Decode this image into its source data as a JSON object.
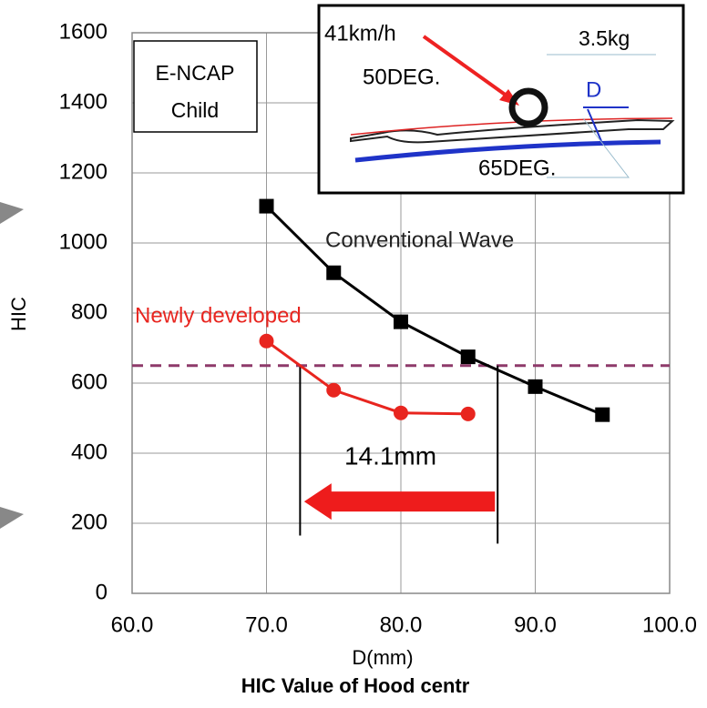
{
  "chart_data": {
    "type": "line",
    "title": "HIC Value of Hood centr",
    "xlabel": "D(mm)",
    "ylabel": "HIC",
    "xlim": [
      60,
      100
    ],
    "xticks": [
      {
        "value": 60,
        "label": "60.0"
      },
      {
        "value": 70,
        "label": "70.0"
      },
      {
        "value": 80,
        "label": "80.0"
      },
      {
        "value": 90,
        "label": "90.0"
      },
      {
        "value": 100,
        "label": "100.0"
      }
    ],
    "ylim": [
      0,
      1600
    ],
    "yticks": [
      0,
      200,
      400,
      600,
      800,
      1000,
      1200,
      1400,
      1600
    ],
    "grid": true,
    "series": [
      {
        "name": "Conventional Wave",
        "color": "#000000",
        "marker": "square",
        "x": [
          70,
          75,
          80,
          85,
          90,
          95
        ],
        "values": [
          1105,
          915,
          775,
          675,
          590,
          510
        ]
      },
      {
        "name": "Newly developed",
        "color": "#e8251f",
        "marker": "circle",
        "x": [
          70,
          75,
          80,
          85
        ],
        "values": [
          720,
          580,
          515,
          512
        ]
      }
    ],
    "hline": {
      "y": 650,
      "color": "#8e3a6a"
    },
    "vlines": [
      {
        "x": 72.5,
        "y": [
          650,
          165
        ]
      },
      {
        "x": 87.2,
        "y": [
          650,
          142
        ]
      }
    ],
    "arrow": {
      "from": 87,
      "to": 72.8,
      "y": 262,
      "label": "14.1mm",
      "color": "#ee1c1c"
    },
    "legend_box": [
      "E-NCAP",
      "Child"
    ],
    "inset": {
      "speed": "41km/h",
      "mass": "3.5kg",
      "angle1": "50DEG.",
      "distance": "D",
      "angle2": "65DEG."
    }
  }
}
